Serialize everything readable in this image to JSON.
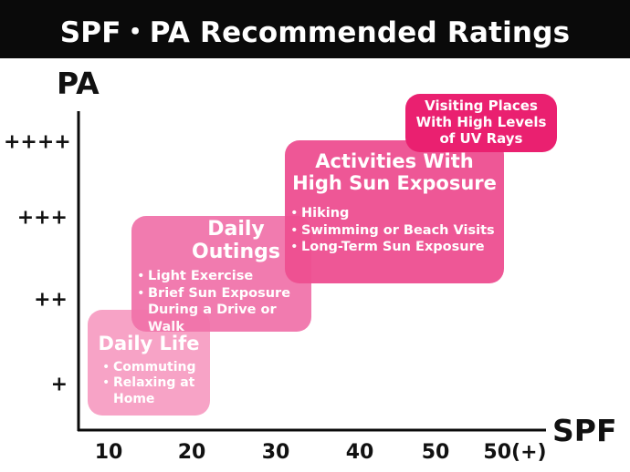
{
  "title": "SPF・PA Recommended Ratings",
  "chart_data": {
    "type": "category-band",
    "xlabel": "SPF",
    "ylabel": "PA",
    "x_ticks": [
      "10",
      "20",
      "30",
      "40",
      "50",
      "50(+)"
    ],
    "y_ticks": [
      "+",
      "++",
      "+++",
      "++++"
    ],
    "regions": [
      {
        "title": "Daily Life",
        "items": [
          "Commuting",
          "Relaxing at\nHome"
        ],
        "spf_range": [
          "10",
          "20"
        ],
        "pa": "+",
        "color": "#f7a3c6"
      },
      {
        "title": "Daily\nOutings",
        "items": [
          "Light Exercise",
          "Brief Sun Exposure\nDuring a Drive or Walk"
        ],
        "spf_range": [
          "20",
          "30"
        ],
        "pa": "++ to +++",
        "color": "#f172a9"
      },
      {
        "title": "Activities With\nHigh Sun Exposure",
        "items": [
          "Hiking",
          "Swimming or Beach Visits",
          "Long-Term Sun Exposure"
        ],
        "spf_range": [
          "30",
          "50(+)"
        ],
        "pa": "+++",
        "color": "#ee4f91"
      },
      {
        "title": "Visiting Places\nWith High Levels\nof UV Rays",
        "items": [],
        "spf_range": [
          "50",
          "50(+)"
        ],
        "pa": "++++",
        "color": "#ea2070"
      }
    ]
  }
}
